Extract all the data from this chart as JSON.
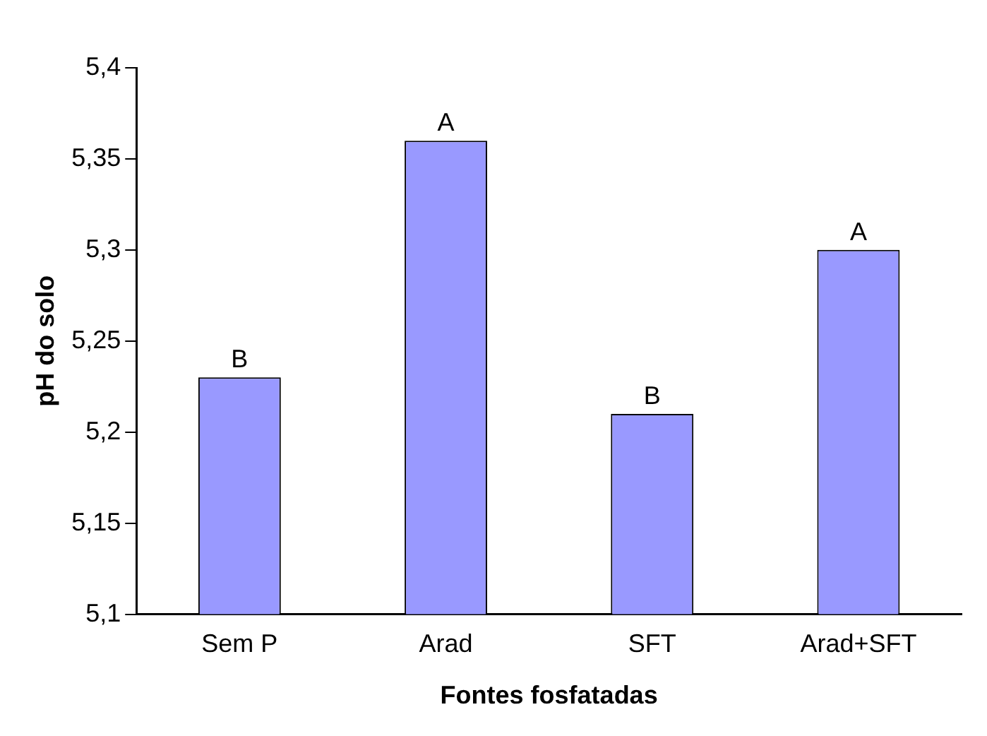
{
  "chart_data": {
    "type": "bar",
    "xlabel": "Fontes fosfatadas",
    "ylabel": "pH do solo",
    "categories": [
      "Sem P",
      "Arad",
      "SFT",
      "Arad+SFT"
    ],
    "values": [
      5.23,
      5.36,
      5.21,
      5.3
    ],
    "color": "#9999ff",
    "ylim": [
      5.1,
      5.4
    ],
    "yticks": [
      {
        "value": 5.1,
        "label": "5,1"
      },
      {
        "value": 5.15,
        "label": "5,15"
      },
      {
        "value": 5.2,
        "label": "5,2"
      },
      {
        "value": 5.25,
        "label": "5,25"
      },
      {
        "value": 5.3,
        "label": "5,3"
      },
      {
        "value": 5.35,
        "label": "5,35"
      },
      {
        "value": 5.4,
        "label": "5,4"
      }
    ],
    "annotations": [
      {
        "text": "B",
        "x": "Sem P",
        "y": 5.23
      },
      {
        "text": "A",
        "x": "Arad",
        "y": 5.36
      },
      {
        "text": "B",
        "x": "SFT",
        "y": 5.21
      },
      {
        "text": "A",
        "x": "Arad+SFT",
        "y": 5.3
      }
    ],
    "grid": false,
    "legend": false
  }
}
